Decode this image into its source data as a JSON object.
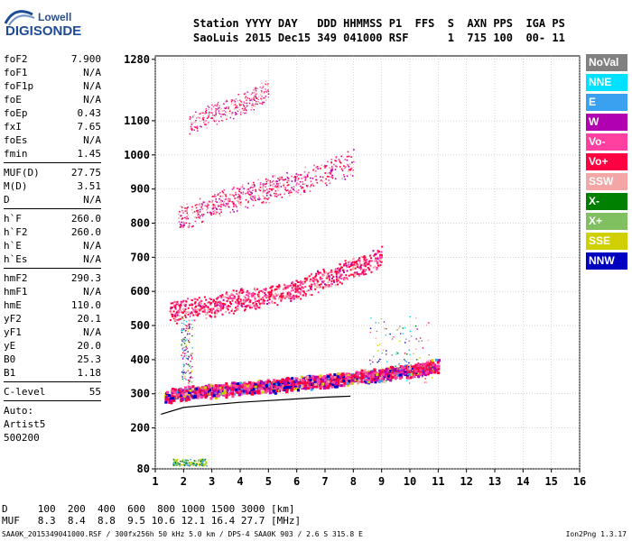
{
  "logo": {
    "top": "Lowell",
    "bottom": "DIGISONDE",
    "mark_color": "#1f4b96"
  },
  "header": {
    "line1": "Station YYYY DAY   DDD HHMMSS P1  FFS  S  AXN PPS  IGA PS",
    "line2": "SaoLuis 2015 Dec15 349 041000 RSF      1  715 100  00- 11"
  },
  "params": {
    "group1": [
      {
        "label": "foF2",
        "value": "7.900"
      },
      {
        "label": "foF1",
        "value": "N/A"
      },
      {
        "label": "foF1p",
        "value": "N/A"
      },
      {
        "label": "foE",
        "value": "N/A"
      },
      {
        "label": "foEp",
        "value": "0.43"
      },
      {
        "label": "fxI",
        "value": "7.65"
      },
      {
        "label": "foEs",
        "value": "N/A"
      },
      {
        "label": "fmin",
        "value": "1.45"
      }
    ],
    "group2": [
      {
        "label": "MUF(D)",
        "value": "27.75"
      },
      {
        "label": "M(D)",
        "value": "3.51"
      },
      {
        "label": "D",
        "value": "N/A"
      }
    ],
    "group3": [
      {
        "label": "h`F",
        "value": "260.0"
      },
      {
        "label": "h`F2",
        "value": "260.0"
      },
      {
        "label": "h`E",
        "value": "N/A"
      },
      {
        "label": "h`Es",
        "value": "N/A"
      }
    ],
    "group4": [
      {
        "label": "hmF2",
        "value": "290.3"
      },
      {
        "label": "hmF1",
        "value": "N/A"
      },
      {
        "label": "hmE",
        "value": "110.0"
      },
      {
        "label": "yF2",
        "value": "20.1"
      },
      {
        "label": "yF1",
        "value": "N/A"
      },
      {
        "label": "yE",
        "value": "20.0"
      },
      {
        "label": "B0",
        "value": "25.3"
      },
      {
        "label": "B1",
        "value": "1.18"
      }
    ],
    "group5": [
      {
        "label": "C-level",
        "value": "55"
      }
    ],
    "group6": [
      {
        "label": "Auto:",
        "value": ""
      },
      {
        "label": "Artist5",
        "value": ""
      },
      {
        "label": "500200",
        "value": ""
      }
    ]
  },
  "legend": [
    {
      "label": "NoVal",
      "color": "#808080"
    },
    {
      "label": "NNE",
      "color": "#00e0ff"
    },
    {
      "label": "E",
      "color": "#3aa0f0"
    },
    {
      "label": "W",
      "color": "#b000b0"
    },
    {
      "label": "Vo-",
      "color": "#ff40a0"
    },
    {
      "label": "Vo+",
      "color": "#ff0040"
    },
    {
      "label": "SSW",
      "color": "#f4a6a6"
    },
    {
      "label": "X-",
      "color": "#008000"
    },
    {
      "label": "X+",
      "color": "#80c060"
    },
    {
      "label": "SSE",
      "color": "#d0d000"
    },
    {
      "label": "NNW",
      "color": "#0000c0"
    }
  ],
  "footer": {
    "d_row": "D     100  200  400  600  800 1000 1500 3000 [km]",
    "muf_row": "MUF   8.3  8.4  8.8  9.5 10.6 12.1 16.4 27.7 [MHz]",
    "info": "SAA0K_2015349041000.RSF / 300fx256h 50 kHz 5.0 km / DPS-4 SAA0K 903 / 2.6 S 315.8 E",
    "version": "Ion2Png 1.3.17"
  },
  "chart_data": {
    "type": "scatter",
    "xlim": [
      1,
      16
    ],
    "ylim": [
      80,
      1290
    ],
    "x_ticks": [
      "1",
      "2",
      "3",
      "4",
      "5",
      "6",
      "7",
      "8",
      "9",
      "10",
      "11",
      "12",
      "13",
      "14",
      "15",
      "16"
    ],
    "y_ticks": [
      "80",
      "200",
      "300",
      "400",
      "500",
      "600",
      "700",
      "800",
      "900",
      "1000",
      "1100",
      "1280"
    ],
    "grid": true,
    "legend_position": "right",
    "traces": [
      {
        "name": "F-trace main",
        "x": [
          1.3,
          2,
          3,
          4,
          5,
          6,
          7,
          8,
          9,
          10,
          11
        ],
        "y": [
          295,
          305,
          310,
          318,
          325,
          332,
          340,
          350,
          360,
          370,
          385
        ]
      },
      {
        "name": "2nd hop",
        "x": [
          1.5,
          2,
          3,
          4,
          5,
          6,
          7,
          8,
          9
        ],
        "y": [
          540,
          548,
          560,
          575,
          590,
          610,
          640,
          670,
          700
        ]
      },
      {
        "name": "3rd hop",
        "x": [
          1.8,
          2,
          3,
          4,
          5,
          6,
          7,
          8
        ],
        "y": [
          810,
          820,
          850,
          880,
          900,
          920,
          950,
          980
        ]
      },
      {
        "name": "4th hop",
        "x": [
          2.2,
          3,
          4,
          5
        ],
        "y": [
          1090,
          1120,
          1150,
          1190
        ]
      }
    ],
    "model_curve": {
      "x": [
        1.2,
        2,
        3,
        4,
        5,
        6,
        7,
        7.9
      ],
      "y": [
        240,
        260,
        268,
        275,
        280,
        285,
        290,
        293
      ]
    }
  }
}
